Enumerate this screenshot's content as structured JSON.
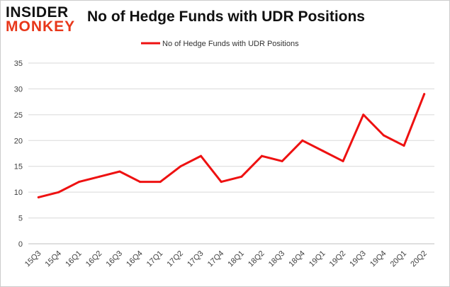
{
  "logo": {
    "line1": "INSIDER",
    "line2": "MONKEY"
  },
  "chart_data": {
    "type": "line",
    "title": "No of Hedge Funds with UDR Positions",
    "xlabel": "",
    "ylabel": "",
    "categories": [
      "15Q3",
      "15Q4",
      "16Q1",
      "16Q2",
      "16Q3",
      "16Q4",
      "17Q1",
      "17Q2",
      "17Q3",
      "17Q4",
      "18Q1",
      "18Q2",
      "18Q3",
      "18Q4",
      "19Q1",
      "19Q2",
      "19Q3",
      "19Q4",
      "20Q1",
      "20Q2"
    ],
    "series": [
      {
        "name": "No of Hedge Funds with UDR Positions",
        "values": [
          9,
          10,
          12,
          13,
          14,
          12,
          12,
          15,
          17,
          12,
          13,
          17,
          16,
          20,
          18,
          16,
          25,
          21,
          19,
          29
        ],
        "color": "#ee1111"
      }
    ],
    "ylim": [
      0,
      35
    ],
    "yticks": [
      0,
      5,
      10,
      15,
      20,
      25,
      30,
      35
    ],
    "grid": true,
    "legend": "top-center"
  }
}
